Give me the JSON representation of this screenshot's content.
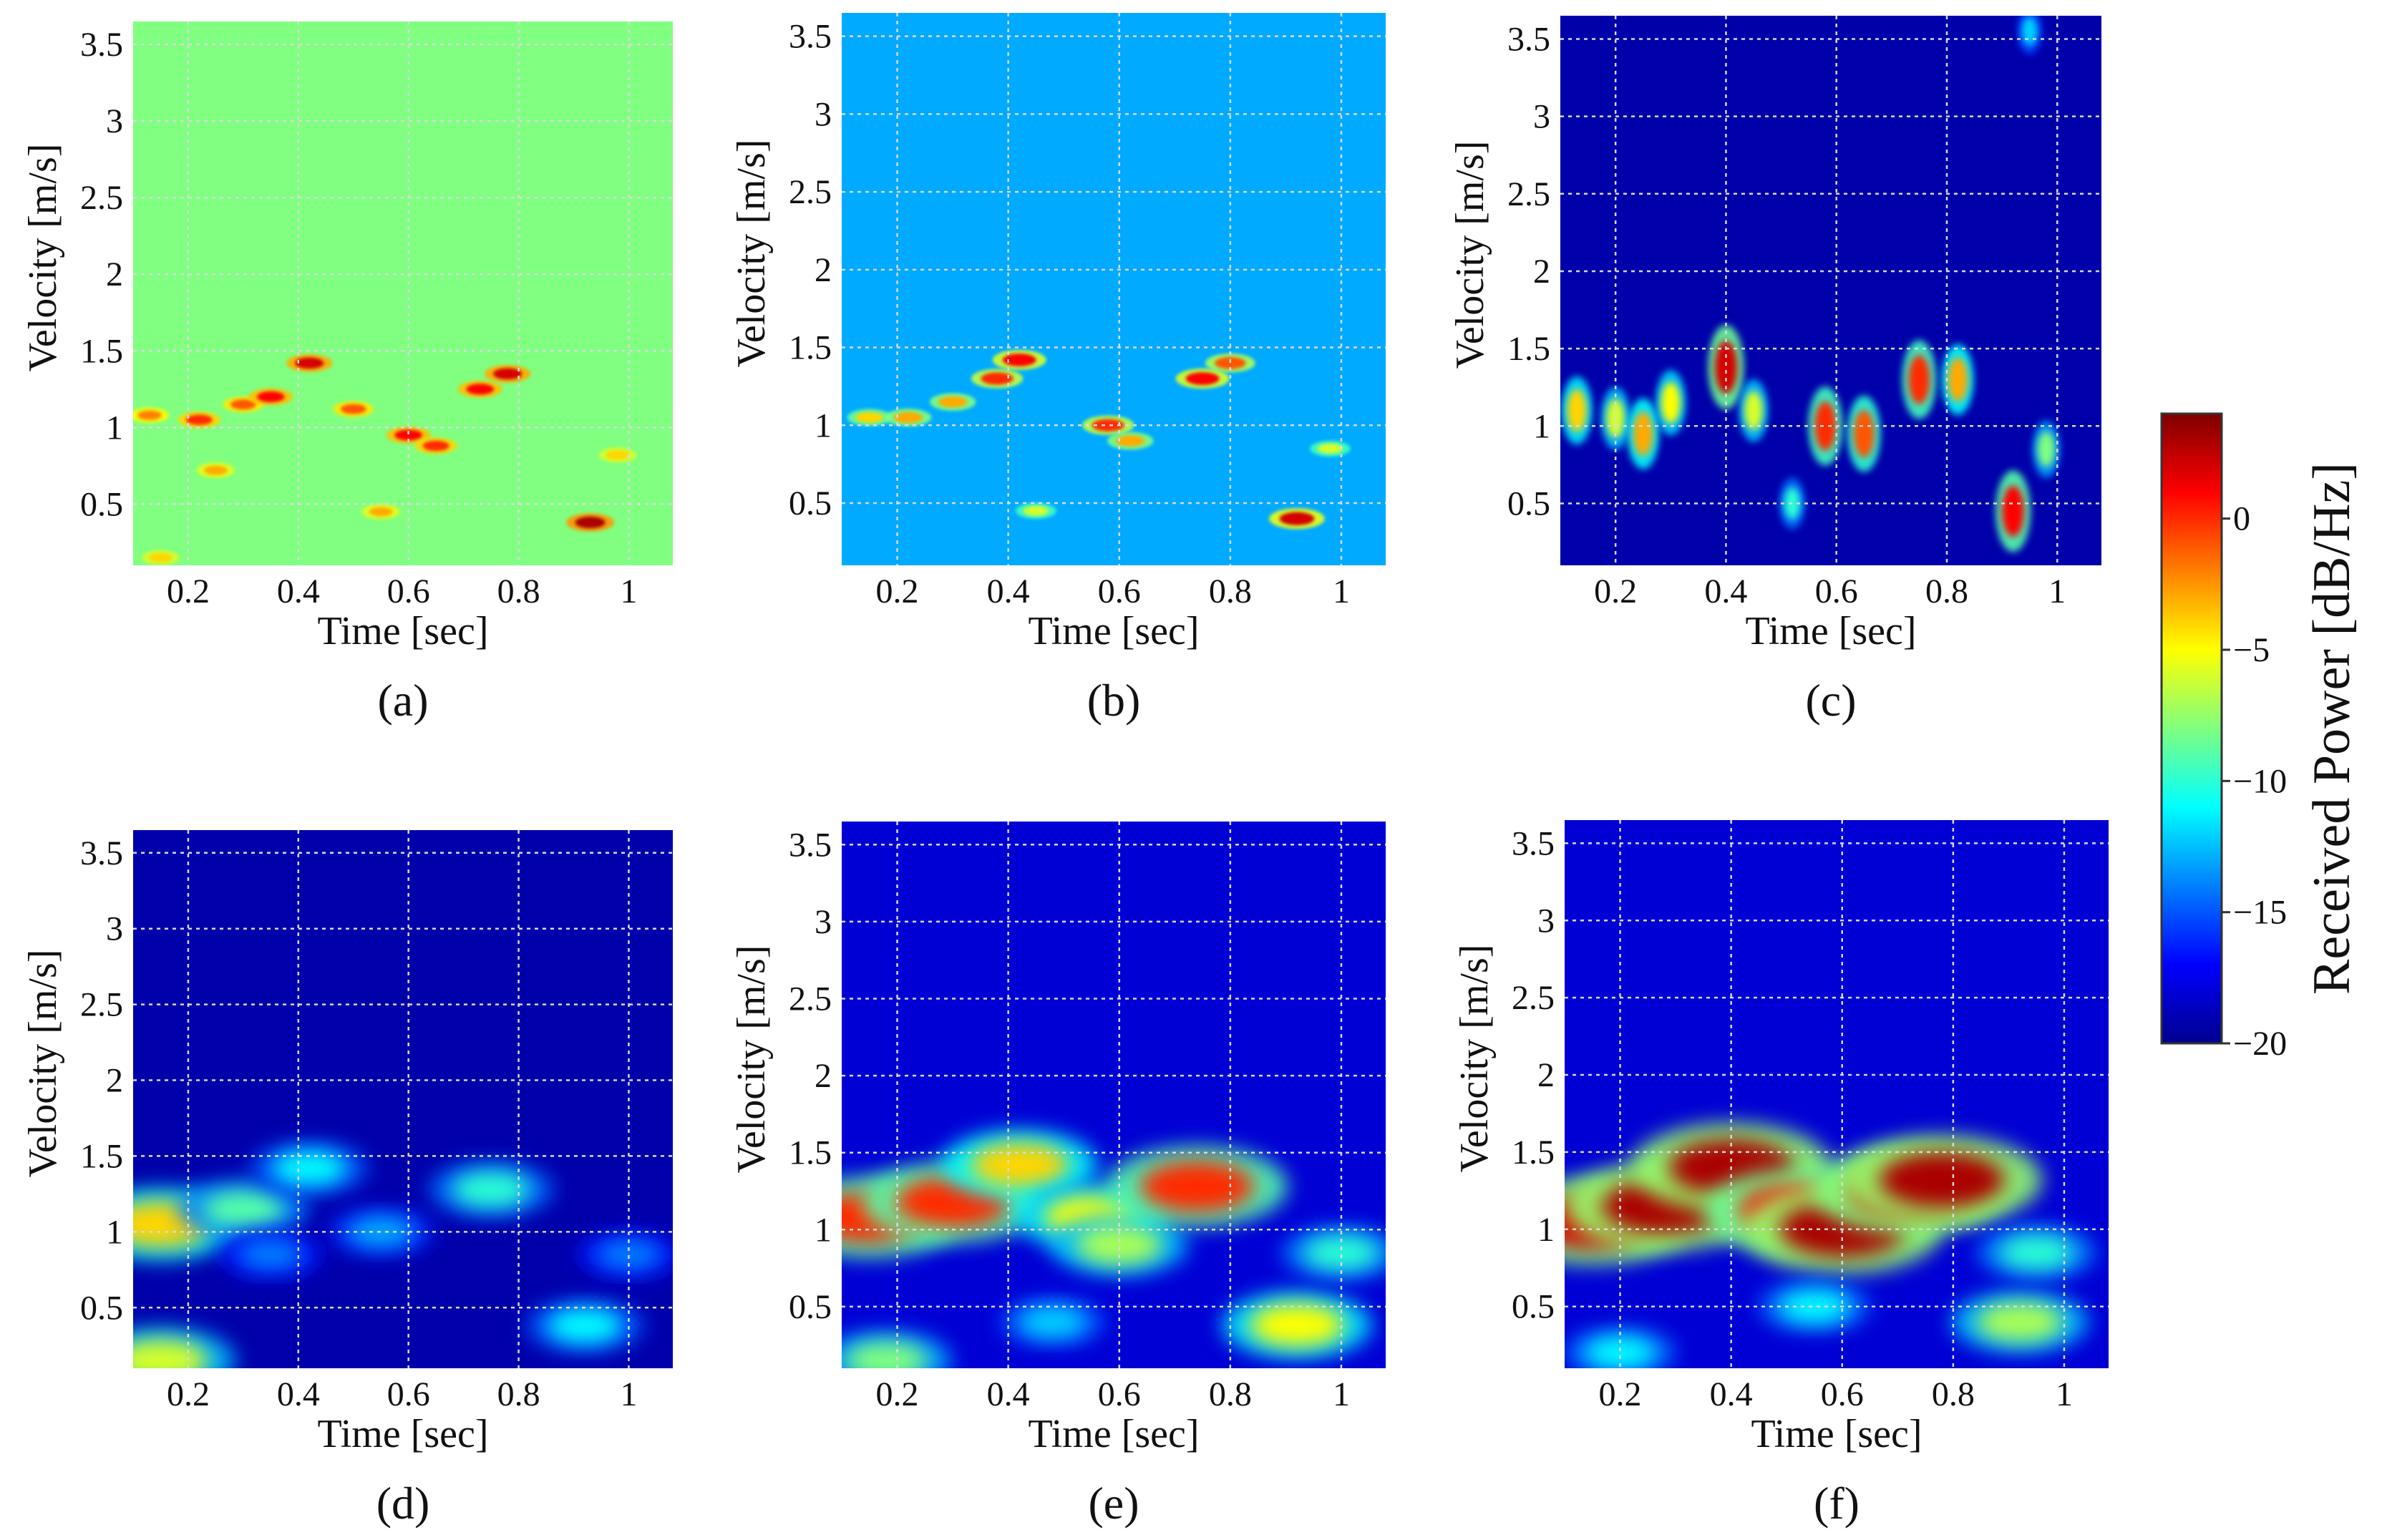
{
  "figure": {
    "colorbar": {
      "label": "Received Power [dB/Hz]",
      "ticks": [
        0,
        -5,
        -10,
        -15,
        -20
      ],
      "range": [
        -20,
        4
      ],
      "colormap": "jet"
    }
  },
  "chart_data": [
    {
      "type": "heatmap",
      "panel": "a",
      "caption": "(a)",
      "xlabel": "Time [sec]",
      "ylabel": "Velocity [m/s]",
      "xlim": [
        0.1,
        1.08
      ],
      "ylim": [
        0.1,
        3.65
      ],
      "xticks": [
        0.2,
        0.4,
        0.6,
        0.8,
        1
      ],
      "xtick_labels": [
        "0.2",
        "0.4",
        "0.6",
        "0.8",
        "1"
      ],
      "yticks": [
        0.5,
        1,
        1.5,
        2,
        2.5,
        3,
        3.5
      ],
      "ytick_labels": [
        "0.5",
        "1",
        "1.5",
        "2",
        "2.5",
        "3",
        "3.5"
      ],
      "grid": true,
      "background_level_db": -8,
      "style": "sharp",
      "highlights": [
        {
          "x": 0.13,
          "y": 1.08,
          "level_db": -2
        },
        {
          "x": 0.22,
          "y": 1.05,
          "level_db": 0
        },
        {
          "x": 0.3,
          "y": 1.15,
          "level_db": -1
        },
        {
          "x": 0.35,
          "y": 1.2,
          "level_db": 1
        },
        {
          "x": 0.42,
          "y": 1.42,
          "level_db": 2
        },
        {
          "x": 0.5,
          "y": 1.12,
          "level_db": -1
        },
        {
          "x": 0.6,
          "y": 0.95,
          "level_db": 1
        },
        {
          "x": 0.65,
          "y": 0.88,
          "level_db": 0
        },
        {
          "x": 0.73,
          "y": 1.25,
          "level_db": 1
        },
        {
          "x": 0.78,
          "y": 1.35,
          "level_db": 2
        },
        {
          "x": 0.93,
          "y": 0.38,
          "level_db": 3
        },
        {
          "x": 0.25,
          "y": 0.72,
          "level_db": -3
        },
        {
          "x": 0.55,
          "y": 0.45,
          "level_db": -3
        },
        {
          "x": 0.98,
          "y": 0.82,
          "level_db": -4
        },
        {
          "x": 0.15,
          "y": 0.15,
          "level_db": -4
        }
      ]
    },
    {
      "type": "heatmap",
      "panel": "b",
      "caption": "(b)",
      "xlabel": "Time [sec]",
      "ylabel": "Velocity [m/s]",
      "xlim": [
        0.1,
        1.08
      ],
      "ylim": [
        0.1,
        3.65
      ],
      "xticks": [
        0.2,
        0.4,
        0.6,
        0.8,
        1
      ],
      "xtick_labels": [
        "0.2",
        "0.4",
        "0.6",
        "0.8",
        "1"
      ],
      "yticks": [
        0.5,
        1,
        1.5,
        2,
        2.5,
        3,
        3.5
      ],
      "ytick_labels": [
        "0.5",
        "1",
        "1.5",
        "2",
        "2.5",
        "3",
        "3.5"
      ],
      "grid": true,
      "background_level_db": -13,
      "style": "sharp",
      "highlights": [
        {
          "x": 0.15,
          "y": 1.05,
          "level_db": -4
        },
        {
          "x": 0.22,
          "y": 1.05,
          "level_db": -3
        },
        {
          "x": 0.3,
          "y": 1.15,
          "level_db": -3
        },
        {
          "x": 0.38,
          "y": 1.3,
          "level_db": 0
        },
        {
          "x": 0.42,
          "y": 1.42,
          "level_db": 1
        },
        {
          "x": 0.58,
          "y": 1.0,
          "level_db": 0
        },
        {
          "x": 0.62,
          "y": 0.9,
          "level_db": -3
        },
        {
          "x": 0.75,
          "y": 1.3,
          "level_db": 1
        },
        {
          "x": 0.8,
          "y": 1.4,
          "level_db": -1
        },
        {
          "x": 0.92,
          "y": 0.4,
          "level_db": 2
        },
        {
          "x": 0.45,
          "y": 0.45,
          "level_db": -6
        },
        {
          "x": 0.98,
          "y": 0.85,
          "level_db": -6
        }
      ]
    },
    {
      "type": "heatmap",
      "panel": "c",
      "caption": "(c)",
      "xlabel": "Time [sec]",
      "ylabel": "Velocity [m/s]",
      "xlim": [
        0.1,
        1.08
      ],
      "ylim": [
        0.1,
        3.65
      ],
      "xticks": [
        0.2,
        0.4,
        0.6,
        0.8,
        1
      ],
      "xtick_labels": [
        "0.2",
        "0.4",
        "0.6",
        "0.8",
        "1"
      ],
      "yticks": [
        0.5,
        1,
        1.5,
        2,
        2.5,
        3,
        3.5
      ],
      "ytick_labels": [
        "0.5",
        "1",
        "1.5",
        "2",
        "2.5",
        "3",
        "3.5"
      ],
      "grid": true,
      "background_level_db": -19,
      "style": "streaks",
      "highlights": [
        {
          "x": 0.13,
          "y": 1.1,
          "level_db": -4
        },
        {
          "x": 0.2,
          "y": 1.05,
          "level_db": -6
        },
        {
          "x": 0.25,
          "y": 0.95,
          "level_db": -3
        },
        {
          "x": 0.3,
          "y": 1.15,
          "level_db": -5
        },
        {
          "x": 0.4,
          "y": 1.38,
          "level_db": 2
        },
        {
          "x": 0.45,
          "y": 1.1,
          "level_db": -6
        },
        {
          "x": 0.58,
          "y": 1.0,
          "level_db": 0
        },
        {
          "x": 0.65,
          "y": 0.95,
          "level_db": -1
        },
        {
          "x": 0.75,
          "y": 1.3,
          "level_db": 0
        },
        {
          "x": 0.82,
          "y": 1.3,
          "level_db": -3
        },
        {
          "x": 0.92,
          "y": 0.45,
          "level_db": 1
        },
        {
          "x": 0.98,
          "y": 0.85,
          "level_db": -8
        },
        {
          "x": 0.95,
          "y": 3.55,
          "level_db": -12
        },
        {
          "x": 0.52,
          "y": 0.5,
          "level_db": -10
        }
      ]
    },
    {
      "type": "heatmap",
      "panel": "d",
      "caption": "(d)",
      "xlabel": "Time [sec]",
      "ylabel": "Velocity [m/s]",
      "xlim": [
        0.1,
        1.08
      ],
      "ylim": [
        0.1,
        3.65
      ],
      "xticks": [
        0.2,
        0.4,
        0.6,
        0.8,
        1
      ],
      "xtick_labels": [
        "0.2",
        "0.4",
        "0.6",
        "0.8",
        "1"
      ],
      "yticks": [
        0.5,
        1,
        1.5,
        2,
        2.5,
        3,
        3.5
      ],
      "ytick_labels": [
        "0.5",
        "1",
        "1.5",
        "2",
        "2.5",
        "3",
        "3.5"
      ],
      "grid": true,
      "background_level_db": -19,
      "style": "smooth",
      "highlights": [
        {
          "x": 0.15,
          "y": 1.05,
          "level_db": -4
        },
        {
          "x": 0.3,
          "y": 1.15,
          "level_db": -9
        },
        {
          "x": 0.42,
          "y": 1.42,
          "level_db": -11
        },
        {
          "x": 0.55,
          "y": 1.0,
          "level_db": -13
        },
        {
          "x": 0.75,
          "y": 1.28,
          "level_db": -10
        },
        {
          "x": 0.92,
          "y": 0.38,
          "level_db": -11
        },
        {
          "x": 0.15,
          "y": 0.15,
          "level_db": -6
        },
        {
          "x": 0.35,
          "y": 0.85,
          "level_db": -14
        },
        {
          "x": 1.0,
          "y": 0.85,
          "level_db": -14
        }
      ]
    },
    {
      "type": "heatmap",
      "panel": "e",
      "caption": "(e)",
      "xlabel": "Time [sec]",
      "ylabel": "Velocity [m/s]",
      "xlim": [
        0.1,
        1.08
      ],
      "ylim": [
        0.1,
        3.65
      ],
      "xticks": [
        0.2,
        0.4,
        0.6,
        0.8,
        1
      ],
      "xtick_labels": [
        "0.2",
        "0.4",
        "0.6",
        "0.8",
        "1"
      ],
      "yticks": [
        0.5,
        1,
        1.5,
        2,
        2.5,
        3,
        3.5
      ],
      "ytick_labels": [
        "0.5",
        "1",
        "1.5",
        "2",
        "2.5",
        "3",
        "3.5"
      ],
      "grid": true,
      "background_level_db": -18,
      "style": "smooth",
      "highlights": [
        {
          "x": 0.15,
          "y": 1.08,
          "level_db": 0
        },
        {
          "x": 0.3,
          "y": 1.18,
          "level_db": 0
        },
        {
          "x": 0.42,
          "y": 1.42,
          "level_db": -4
        },
        {
          "x": 0.55,
          "y": 1.08,
          "level_db": -5
        },
        {
          "x": 0.6,
          "y": 0.9,
          "level_db": -7
        },
        {
          "x": 0.74,
          "y": 1.28,
          "level_db": 0
        },
        {
          "x": 0.92,
          "y": 0.38,
          "level_db": -5
        },
        {
          "x": 0.18,
          "y": 0.15,
          "level_db": -8
        },
        {
          "x": 1.0,
          "y": 0.85,
          "level_db": -10
        },
        {
          "x": 0.48,
          "y": 0.4,
          "level_db": -12
        }
      ]
    },
    {
      "type": "heatmap",
      "panel": "f",
      "caption": "(f)",
      "xlabel": "Time [sec]",
      "ylabel": "Velocity [m/s]",
      "xlim": [
        0.1,
        1.08
      ],
      "ylim": [
        0.1,
        3.65
      ],
      "xticks": [
        0.2,
        0.4,
        0.6,
        0.8,
        1
      ],
      "xtick_labels": [
        "0.2",
        "0.4",
        "0.6",
        "0.8",
        "1"
      ],
      "yticks": [
        0.5,
        1,
        1.5,
        2,
        2.5,
        3,
        3.5
      ],
      "ytick_labels": [
        "0.5",
        "1",
        "1.5",
        "2",
        "2.5",
        "3",
        "3.5"
      ],
      "grid": true,
      "background_level_db": -18,
      "style": "smooth",
      "highlights": [
        {
          "x": 0.15,
          "y": 1.05,
          "level_db": 2
        },
        {
          "x": 0.28,
          "y": 1.15,
          "level_db": 3
        },
        {
          "x": 0.4,
          "y": 1.4,
          "level_db": 3
        },
        {
          "x": 0.52,
          "y": 1.12,
          "level_db": 1
        },
        {
          "x": 0.6,
          "y": 1.0,
          "level_db": 3
        },
        {
          "x": 0.72,
          "y": 1.25,
          "level_db": 2
        },
        {
          "x": 0.78,
          "y": 1.32,
          "level_db": 3
        },
        {
          "x": 0.92,
          "y": 0.4,
          "level_db": -7
        },
        {
          "x": 0.95,
          "y": 0.85,
          "level_db": -10
        },
        {
          "x": 0.2,
          "y": 0.2,
          "level_db": -11
        },
        {
          "x": 0.55,
          "y": 0.5,
          "level_db": -11
        }
      ]
    }
  ]
}
